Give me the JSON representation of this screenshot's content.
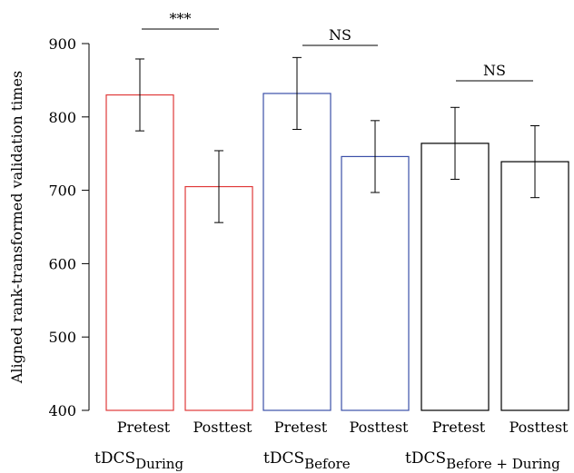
{
  "chart_data": {
    "type": "bar",
    "ylabel": "Aligned rank-transformed validation times",
    "ylim": [
      400,
      920
    ],
    "yticks": [
      400,
      500,
      600,
      700,
      800,
      900
    ],
    "grid": false,
    "categories": [
      "Pretest",
      "Posttest",
      "Pretest",
      "Posttest",
      "Pretest",
      "Posttest"
    ],
    "values": [
      830,
      705,
      832,
      746,
      764,
      739
    ],
    "errors": [
      49,
      49,
      49,
      49,
      49,
      49
    ],
    "bar_colors": [
      "#e03a3a",
      "#e03a3a",
      "#3b4fa8",
      "#3b4fa8",
      "#000000",
      "#000000"
    ],
    "groups": [
      {
        "base": "tDCS",
        "sub": "During"
      },
      {
        "base": "tDCS",
        "sub": "Before"
      },
      {
        "base": "tDCS",
        "sub": "Before + During"
      }
    ],
    "significance": [
      "***",
      "NS",
      "NS"
    ]
  }
}
